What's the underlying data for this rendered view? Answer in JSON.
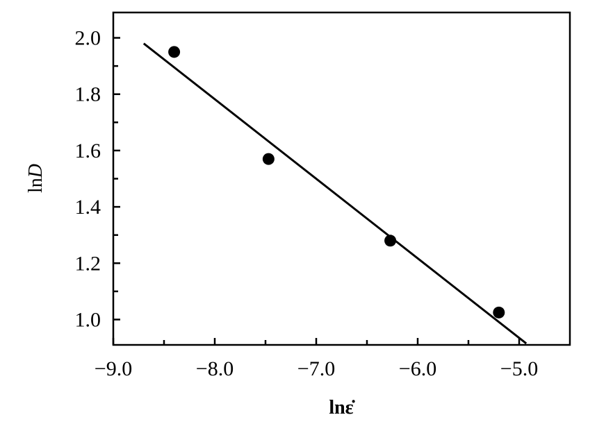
{
  "chart_data": {
    "type": "scatter",
    "xlabel": "lnε̇",
    "ylabel_prefix": "ln",
    "ylabel_var": "D",
    "xlim": [
      -9.0,
      -4.5
    ],
    "ylim": [
      0.91,
      2.09
    ],
    "x_ticks": [
      {
        "value": -9.0,
        "label": "−9.0"
      },
      {
        "value": -8.0,
        "label": "−8.0"
      },
      {
        "value": -7.0,
        "label": "−7.0"
      },
      {
        "value": -6.0,
        "label": "−6.0"
      },
      {
        "value": -5.0,
        "label": "−5.0"
      }
    ],
    "x_minor_ticks": [
      -8.5,
      -7.5,
      -6.5,
      -5.5
    ],
    "y_ticks": [
      {
        "value": 1.0,
        "label": "1.0"
      },
      {
        "value": 1.2,
        "label": "1.2"
      },
      {
        "value": 1.4,
        "label": "1.4"
      },
      {
        "value": 1.6,
        "label": "1.6"
      },
      {
        "value": 1.8,
        "label": "1.8"
      },
      {
        "value": 2.0,
        "label": "2.0"
      }
    ],
    "y_minor_ticks": [
      1.1,
      1.3,
      1.5,
      1.7,
      1.9
    ],
    "points": [
      {
        "x": -8.4,
        "y": 1.95
      },
      {
        "x": -7.47,
        "y": 1.57
      },
      {
        "x": -6.27,
        "y": 1.28
      },
      {
        "x": -5.2,
        "y": 1.025
      }
    ],
    "fit_line": {
      "x": [
        -8.7,
        -4.93
      ],
      "y": [
        1.98,
        0.915
      ]
    },
    "grid": false,
    "colors": {
      "marker": "#000000",
      "line": "#000000",
      "axes": "#000000"
    }
  }
}
